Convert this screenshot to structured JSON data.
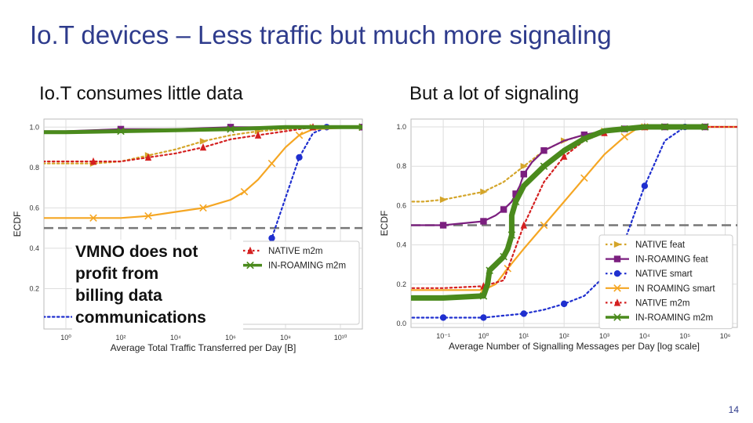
{
  "slide": {
    "title": "Io.T devices – Less traffic but much more signaling",
    "left_subtitle": "Io.T consumes little data",
    "right_subtitle": "But a lot of signaling",
    "callout_lines": [
      "VMNO does not profit from",
      "billing data",
      "communications"
    ],
    "page_number": "14"
  },
  "chart_data": [
    {
      "type": "line",
      "xlabel": "Average Total Traffic Transferred per Day [B]",
      "ylabel": "ECDF",
      "xscale": "log",
      "xlim_log10": [
        -0.8,
        10.8
      ],
      "ylim": [
        0,
        1.04
      ],
      "yticks": [
        "1.0",
        "0.8",
        "0.6",
        "0.4",
        "0.2"
      ],
      "ytick_values": [
        1.0,
        0.8,
        0.6,
        0.4,
        0.2
      ],
      "xticks": [
        "10⁰",
        "10²",
        "10⁴",
        "10⁶",
        "10⁸",
        "10¹⁰"
      ],
      "xtick_log10": [
        0,
        2,
        4,
        6,
        8,
        10
      ],
      "grid": true,
      "legend_position": "lower-right",
      "reference_line": 0.5,
      "series": [
        {
          "name": "NATIVE feat",
          "color": "#d4a52a",
          "dash": "dotted",
          "marker": "triangle-right",
          "x_log10": [
            -1.0,
            0,
            1,
            2,
            3,
            4,
            5,
            6,
            7,
            8,
            9,
            10.8
          ],
          "y": [
            0.82,
            0.82,
            0.82,
            0.83,
            0.86,
            0.89,
            0.93,
            0.96,
            0.98,
            0.99,
            1.0,
            1.0
          ]
        },
        {
          "name": "IN-ROAMING feat",
          "color": "#7b1f7f",
          "dash": "solid",
          "marker": "square",
          "x_log10": [
            -1.0,
            0,
            2,
            4,
            6,
            8,
            10.8
          ],
          "y": [
            0.98,
            0.98,
            0.99,
            0.99,
            1.0,
            1.0,
            1.0
          ]
        },
        {
          "name": "NATIVE smart",
          "color": "#1f2fcf",
          "dash": "dotted",
          "marker": "circle",
          "x_log10": [
            -1.0,
            0,
            1,
            2,
            3,
            4,
            5,
            6,
            6.5,
            7,
            7.5,
            8,
            8.5,
            9,
            9.5,
            10.8
          ],
          "y": [
            0.06,
            0.06,
            0.06,
            0.07,
            0.08,
            0.1,
            0.13,
            0.17,
            0.21,
            0.3,
            0.45,
            0.65,
            0.85,
            0.97,
            1.0,
            1.0
          ]
        },
        {
          "name": "IN ROAMING smart",
          "color": "#f5a623",
          "dash": "solid",
          "marker": "x",
          "x_log10": [
            -1.0,
            0,
            1,
            2,
            3,
            4,
            5,
            6,
            6.5,
            7,
            7.5,
            8,
            8.5,
            9,
            10.8
          ],
          "y": [
            0.55,
            0.55,
            0.55,
            0.55,
            0.56,
            0.58,
            0.6,
            0.64,
            0.68,
            0.74,
            0.82,
            0.9,
            0.96,
            0.99,
            1.0
          ]
        },
        {
          "name": "NATIVE m2m",
          "color": "#d42020",
          "dash": "dotted",
          "marker": "triangle-up",
          "x_log10": [
            -1.0,
            0,
            1,
            2,
            3,
            4,
            5,
            6,
            7,
            8,
            9,
            10.8
          ],
          "y": [
            0.83,
            0.83,
            0.83,
            0.83,
            0.85,
            0.87,
            0.9,
            0.94,
            0.96,
            0.98,
            1.0,
            1.0
          ]
        },
        {
          "name": "IN-ROAMING m2m",
          "color": "#4a8a1c",
          "dash": "solid",
          "marker": "x",
          "x_log10": [
            -1.0,
            0,
            2,
            4,
            6,
            8,
            10.8
          ],
          "y": [
            0.975,
            0.975,
            0.98,
            0.985,
            0.99,
            1.0,
            1.0
          ]
        }
      ]
    },
    {
      "type": "line",
      "xlabel": "Average Number of Signalling Messages per Day [log scale]",
      "ylabel": "ECDF",
      "xscale": "log",
      "xlim_log10": [
        -1.8,
        6.3
      ],
      "ylim": [
        -0.02,
        1.04
      ],
      "yticks": [
        "1.0",
        "0.8",
        "0.6",
        "0.4",
        "0.2",
        "0.0"
      ],
      "ytick_values": [
        1.0,
        0.8,
        0.6,
        0.4,
        0.2,
        0.0
      ],
      "xticks": [
        "10⁻¹",
        "10⁰",
        "10¹",
        "10²",
        "10³",
        "10⁴",
        "10⁵",
        "10⁶"
      ],
      "xtick_log10": [
        -1,
        0,
        1,
        2,
        3,
        4,
        5,
        6
      ],
      "grid": true,
      "legend_position": "lower-right",
      "reference_line": 0.5,
      "series": [
        {
          "name": "NATIVE feat",
          "color": "#d4a52a",
          "dash": "dotted",
          "marker": "triangle-right",
          "x_log10": [
            -2.0,
            -1.5,
            -1,
            -0.5,
            0,
            0.5,
            1,
            1.5,
            2,
            2.5,
            3,
            3.5,
            4,
            6.3
          ],
          "y": [
            0.62,
            0.62,
            0.63,
            0.65,
            0.67,
            0.72,
            0.8,
            0.88,
            0.93,
            0.96,
            0.98,
            0.99,
            1.0,
            1.0
          ]
        },
        {
          "name": "IN-ROAMING feat",
          "color": "#7b1f7f",
          "dash": "solid",
          "marker": "square",
          "x_log10": [
            -2.0,
            -1.5,
            -1,
            -0.5,
            0,
            0.3,
            0.5,
            0.7,
            0.8,
            0.9,
            1.0,
            1.2,
            1.5,
            2,
            2.5,
            3,
            3.5,
            4,
            4.5,
            5,
            5.5
          ],
          "y": [
            0.5,
            0.5,
            0.5,
            0.51,
            0.52,
            0.55,
            0.58,
            0.62,
            0.66,
            0.7,
            0.76,
            0.82,
            0.88,
            0.93,
            0.96,
            0.98,
            0.99,
            1.0,
            1.0,
            1.0,
            1.0
          ]
        },
        {
          "name": "NATIVE smart",
          "color": "#1f2fcf",
          "dash": "dotted",
          "marker": "circle",
          "x_log10": [
            -2.0,
            -1.5,
            -1,
            -0.5,
            0,
            0.5,
            1,
            1.5,
            2,
            2.5,
            3,
            3.5,
            4,
            4.5,
            5,
            6.3
          ],
          "y": [
            0.03,
            0.03,
            0.03,
            0.03,
            0.03,
            0.04,
            0.05,
            0.07,
            0.1,
            0.14,
            0.24,
            0.42,
            0.7,
            0.93,
            1.0,
            1.0
          ]
        },
        {
          "name": "IN ROAMING smart",
          "color": "#f5a623",
          "dash": "solid",
          "marker": "x",
          "x_log10": [
            -2.0,
            -1,
            0,
            0.3,
            0.6,
            1.0,
            1.5,
            2,
            2.5,
            3,
            3.5,
            3.8,
            4,
            6.3
          ],
          "y": [
            0.17,
            0.17,
            0.17,
            0.2,
            0.28,
            0.38,
            0.5,
            0.62,
            0.74,
            0.86,
            0.95,
            0.99,
            1.0,
            1.0
          ]
        },
        {
          "name": "NATIVE m2m",
          "color": "#d42020",
          "dash": "dotted",
          "marker": "triangle-up",
          "x_log10": [
            -2.0,
            -1,
            0,
            0.5,
            1.0,
            1.5,
            2,
            2.5,
            3,
            3.5,
            4,
            6.3
          ],
          "y": [
            0.18,
            0.18,
            0.19,
            0.22,
            0.5,
            0.72,
            0.85,
            0.93,
            0.97,
            0.99,
            1.0,
            1.0
          ]
        },
        {
          "name": "IN-ROAMING m2m",
          "color": "#4a8a1c",
          "dash": "solid",
          "marker": "x",
          "x_log10": [
            -2.0,
            -1,
            0,
            0.1,
            0.15,
            0.3,
            0.5,
            0.6,
            0.7,
            0.7,
            0.8,
            1.0,
            1.5,
            2,
            2.5,
            3,
            3.5,
            4,
            4.5,
            5,
            5.5
          ],
          "y": [
            0.13,
            0.13,
            0.14,
            0.2,
            0.27,
            0.3,
            0.34,
            0.38,
            0.45,
            0.55,
            0.62,
            0.7,
            0.8,
            0.88,
            0.94,
            0.98,
            0.99,
            1.0,
            1.0,
            1.0,
            1.0
          ]
        }
      ]
    }
  ]
}
